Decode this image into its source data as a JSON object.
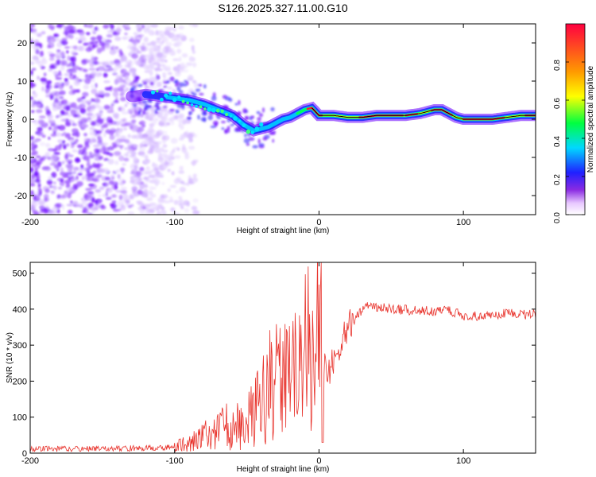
{
  "title": "S126.2025.327.11.00.G10",
  "colors": {
    "snr_line": "#e8322b",
    "ridge_line": "#000000"
  },
  "chart_data": [
    {
      "type": "heatmap",
      "xlabel": "Height of straight line (km)",
      "ylabel": "Frequency (Hz)",
      "xlim": [
        -200,
        150
      ],
      "ylim": [
        -25,
        25
      ],
      "x_ticks": [
        -200,
        -100,
        0,
        100
      ],
      "y_ticks": [
        20,
        10,
        0,
        -10,
        -20
      ],
      "colorbar": {
        "label": "Normalized spectral amplitude",
        "range": [
          0,
          1
        ],
        "ticks": [
          "0.0",
          "0.2",
          "0.4",
          "0.6",
          "0.8"
        ]
      },
      "ridge": {
        "x": [
          -128,
          -120,
          -110,
          -100,
          -90,
          -80,
          -70,
          -60,
          -52,
          -45,
          -40,
          -35,
          -30,
          -25,
          -20,
          -15,
          -10,
          -5,
          0,
          10,
          20,
          30,
          40,
          50,
          60,
          70,
          80,
          85,
          90,
          95,
          100,
          110,
          120,
          130,
          140,
          150
        ],
        "y": [
          6,
          6.5,
          6,
          5.5,
          5,
          4,
          2.5,
          1,
          -1.5,
          -3,
          -2.5,
          -2,
          -1,
          0,
          0.5,
          1.5,
          2.5,
          3,
          1,
          1,
          0.5,
          0.5,
          1,
          1,
          1,
          1.5,
          2.5,
          2.5,
          1.5,
          0.5,
          0,
          0,
          0,
          0.5,
          1,
          1
        ]
      }
    },
    {
      "type": "line",
      "xlabel": "Height of straight line (km)",
      "ylabel": "SNR (10 * v/v)",
      "xlim": [
        -200,
        150
      ],
      "ylim": [
        0,
        530
      ],
      "x_ticks": [
        -200,
        -100,
        0,
        100
      ],
      "y_ticks": [
        0,
        100,
        200,
        300,
        400,
        500
      ],
      "series": [
        {
          "name": "SNR",
          "x": [
            -200,
            -180,
            -160,
            -140,
            -120,
            -105,
            -100,
            -95,
            -90,
            -85,
            -80,
            -75,
            -70,
            -65,
            -60,
            -55,
            -50,
            -45,
            -40,
            -35,
            -30,
            -25,
            -20,
            -15,
            -10,
            -5,
            0,
            1,
            2,
            5,
            10,
            15,
            20,
            25,
            30,
            35,
            40,
            50,
            60,
            70,
            80,
            90,
            95,
            100,
            110,
            120,
            130,
            140,
            150
          ],
          "values": [
            12,
            12,
            13,
            13,
            14,
            15,
            20,
            25,
            30,
            35,
            45,
            55,
            65,
            75,
            70,
            80,
            95,
            110,
            140,
            175,
            205,
            225,
            245,
            260,
            290,
            305,
            330,
            300,
            150,
            200,
            260,
            310,
            350,
            380,
            400,
            410,
            405,
            400,
            398,
            395,
            395,
            395,
            390,
            380,
            382,
            385,
            388,
            385,
            385
          ]
        }
      ]
    }
  ]
}
